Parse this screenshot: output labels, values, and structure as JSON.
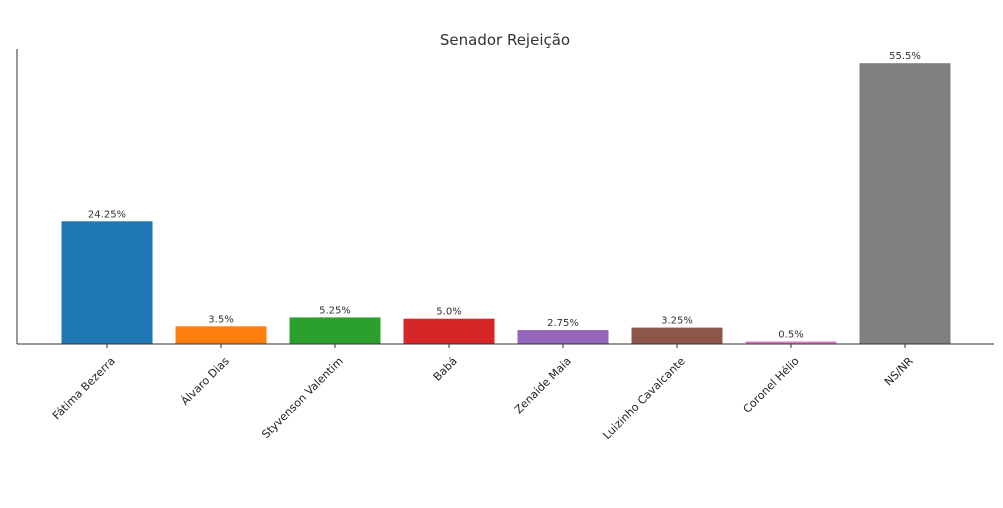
{
  "chart_data": {
    "type": "bar",
    "title": "Senador Rejeição",
    "xlabel": "",
    "ylabel": "",
    "categories": [
      "Fátima Bezerra",
      "Álvaro Dias",
      "Styvenson Valentim",
      "Babá",
      "Zenaide Maia",
      "Luizinho Cavalcante",
      "Coronel Hélio",
      "NS/NR"
    ],
    "values": [
      24.25,
      3.5,
      5.25,
      5.0,
      2.75,
      3.25,
      0.5,
      55.5
    ],
    "data_labels": [
      "24.25%",
      "3.5%",
      "5.25%",
      "5.0%",
      "2.75%",
      "3.25%",
      "0.5%",
      "55.5%"
    ],
    "colors": [
      "#1f77b4",
      "#ff7f0e",
      "#2ca02c",
      "#d62728",
      "#9467bd",
      "#8c564b",
      "#e377c2",
      "#7f7f7f"
    ],
    "ylim": [
      0,
      58.3
    ],
    "grid": false,
    "legend": "none",
    "y_ticks_shown": false
  }
}
